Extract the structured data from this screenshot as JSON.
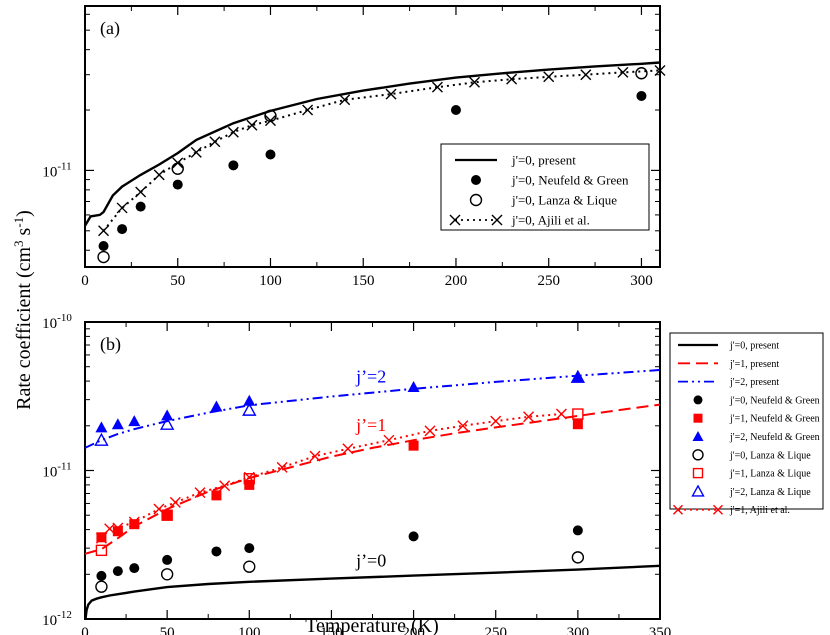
{
  "ylabel_left": "Rate coefficient (cm",
  "ylabel_sup": "3",
  "ylabel_mid": " s",
  "ylabel_sup2": "-1",
  "ylabel_end": ")",
  "chart_data": [
    {
      "type": "scatter",
      "panel_label": "(a)",
      "xlabel": "",
      "ylabel": "Rate coefficient (cm3 s-1)",
      "xlim": [
        0,
        310
      ],
      "ylim": [
        3.3e-12,
        6.6e-11
      ],
      "yscale": "log",
      "x_ticks": [
        0,
        50,
        100,
        150,
        200,
        250,
        300
      ],
      "y_ticks": [
        {
          "value": 1e-11,
          "base": "10",
          "exp": "-11"
        }
      ],
      "legend_position": "bottom-right",
      "series": [
        {
          "name": "j'=0, present",
          "style": "solid",
          "color": "#000000",
          "marker": "none",
          "x": [
            0,
            3,
            8,
            10,
            15,
            20,
            30,
            40,
            50,
            60,
            80,
            100,
            125,
            150,
            175,
            200,
            225,
            250,
            275,
            300,
            310
          ],
          "y": [
            5.3e-12,
            5.9e-12,
            6e-12,
            6.2e-12,
            7.5e-12,
            8.3e-12,
            9.5e-12,
            1.07e-11,
            1.22e-11,
            1.42e-11,
            1.72e-11,
            1.98e-11,
            2.27e-11,
            2.5e-11,
            2.71e-11,
            2.9e-11,
            3.05e-11,
            3.18e-11,
            3.3e-11,
            3.4e-11,
            3.45e-11
          ]
        },
        {
          "name": "j'=0, Neufeld & Green",
          "style": "none",
          "color": "#000000",
          "marker": "filled-circle",
          "x": [
            10,
            20,
            30,
            50,
            80,
            100,
            200,
            300
          ],
          "y": [
            4.2e-12,
            5.1e-12,
            6.6e-12,
            8.5e-12,
            1.06e-11,
            1.2e-11,
            2e-11,
            2.35e-11
          ]
        },
        {
          "name": "j'=0, Lanza & Lique",
          "style": "none",
          "color": "#000000",
          "marker": "open-circle",
          "x": [
            10,
            50,
            100,
            300
          ],
          "y": [
            3.7e-12,
            1.02e-11,
            1.87e-11,
            3.05e-11
          ]
        },
        {
          "name": "j'=0, Ajili et al.",
          "style": "dotted",
          "color": "#000000",
          "marker": "x",
          "x": [
            10,
            20,
            30,
            40,
            50,
            60,
            70,
            80,
            90,
            100,
            120,
            140,
            165,
            190,
            210,
            230,
            250,
            270,
            290,
            310
          ],
          "y": [
            5e-12,
            6.5e-12,
            7.8e-12,
            9.5e-12,
            1.09e-11,
            1.23e-11,
            1.39e-11,
            1.55e-11,
            1.68e-11,
            1.77e-11,
            2e-11,
            2.25e-11,
            2.4e-11,
            2.6e-11,
            2.75e-11,
            2.85e-11,
            2.93e-11,
            3e-11,
            3.08e-11,
            3.15e-11
          ]
        }
      ]
    },
    {
      "type": "scatter",
      "panel_label": "(b)",
      "xlabel": "Temperature (K)",
      "ylabel": "Rate coefficient (cm3 s-1)",
      "xlim": [
        0,
        350
      ],
      "ylim": [
        1e-12,
        1e-10
      ],
      "yscale": "log",
      "x_ticks": [
        0,
        50,
        100,
        150,
        200,
        250,
        300,
        350
      ],
      "y_ticks": [
        {
          "value": 1e-12,
          "base": "10",
          "exp": "-12"
        },
        {
          "value": 1e-11,
          "base": "10",
          "exp": "-11"
        },
        {
          "value": 1e-10,
          "base": "10",
          "exp": "-10"
        }
      ],
      "annotations": [
        {
          "text": "j’=2",
          "x": 165,
          "y": 3.9e-11,
          "color": "#0000ff"
        },
        {
          "text": "j’=1",
          "x": 165,
          "y": 1.85e-11,
          "color": "#ff0000"
        },
        {
          "text": "j’=0",
          "x": 165,
          "y": 2.25e-12,
          "color": "#000000"
        }
      ],
      "legend_position": "outside-right",
      "series": [
        {
          "name": "j'=0, present",
          "style": "solid",
          "color": "#000000",
          "marker": "none",
          "x": [
            0.3,
            1,
            2,
            4,
            7,
            10,
            15,
            20,
            30,
            50,
            75,
            100,
            150,
            200,
            250,
            300,
            350
          ],
          "y": [
            1e-12,
            1.15e-12,
            1.25e-12,
            1.33e-12,
            1.37e-12,
            1.4e-12,
            1.44e-12,
            1.47e-12,
            1.53e-12,
            1.64e-12,
            1.72e-12,
            1.78e-12,
            1.87e-12,
            1.96e-12,
            2.05e-12,
            2.15e-12,
            2.28e-12
          ]
        },
        {
          "name": "j'=1, present",
          "style": "dashed",
          "color": "#ff0000",
          "marker": "none",
          "x": [
            0,
            5,
            10,
            20,
            30,
            50,
            75,
            100,
            125,
            150,
            175,
            200,
            225,
            250,
            275,
            300,
            325,
            350
          ],
          "y": [
            2.75e-12,
            2.85e-12,
            2.95e-12,
            3.5e-12,
            4.2e-12,
            5.5e-12,
            7.2e-12,
            8.9e-12,
            1.05e-11,
            1.24e-11,
            1.42e-11,
            1.6e-11,
            1.78e-11,
            1.95e-11,
            2.13e-11,
            2.33e-11,
            2.55e-11,
            2.78e-11
          ]
        },
        {
          "name": "j'=2, present",
          "style": "dashdot",
          "color": "#0000ff",
          "marker": "none",
          "x": [
            0,
            10,
            20,
            30,
            50,
            75,
            100,
            150,
            200,
            250,
            300,
            350
          ],
          "y": [
            1.42e-11,
            1.6e-11,
            1.76e-11,
            1.9e-11,
            2.15e-11,
            2.45e-11,
            2.75e-11,
            3.15e-11,
            3.55e-11,
            3.95e-11,
            4.35e-11,
            4.75e-11
          ]
        },
        {
          "name": "j'=0, Neufeld & Green",
          "style": "none",
          "color": "#000000",
          "marker": "filled-circle",
          "x": [
            10,
            20,
            30,
            50,
            80,
            100,
            200,
            300
          ],
          "y": [
            1.95e-12,
            2.1e-12,
            2.2e-12,
            2.5e-12,
            2.85e-12,
            3e-12,
            3.6e-12,
            3.95e-12
          ]
        },
        {
          "name": "j'=1, Neufeld & Green",
          "style": "none",
          "color": "#ff0000",
          "marker": "filled-square",
          "x": [
            10,
            20,
            30,
            50,
            80,
            100,
            200,
            300
          ],
          "y": [
            3.55e-12,
            3.9e-12,
            4.35e-12,
            5.05e-12,
            6.8e-12,
            8e-12,
            1.47e-11,
            2.05e-11
          ]
        },
        {
          "name": "j'=2, Neufeld & Green",
          "style": "none",
          "color": "#0000ff",
          "marker": "filled-triangle",
          "x": [
            10,
            20,
            30,
            50,
            80,
            100,
            200,
            300
          ],
          "y": [
            1.95e-11,
            2.05e-11,
            2.15e-11,
            2.35e-11,
            2.7e-11,
            2.95e-11,
            3.65e-11,
            4.25e-11
          ]
        },
        {
          "name": "j'=0, Lanza & Lique",
          "style": "none",
          "color": "#000000",
          "marker": "open-circle",
          "x": [
            10,
            50,
            100,
            300
          ],
          "y": [
            1.65e-12,
            2e-12,
            2.25e-12,
            2.6e-12
          ]
        },
        {
          "name": "j'=1, Lanza & Lique",
          "style": "none",
          "color": "#ff0000",
          "marker": "open-square",
          "x": [
            10,
            50,
            100,
            300
          ],
          "y": [
            2.9e-12,
            5e-12,
            8.8e-12,
            2.4e-11
          ]
        },
        {
          "name": "j'=2, Lanza & Lique",
          "style": "none",
          "color": "#0000ff",
          "marker": "open-triangle",
          "x": [
            10,
            50,
            100,
            300
          ],
          "y": [
            1.6e-11,
            2.05e-11,
            2.55e-11,
            4.25e-11
          ]
        },
        {
          "name": "j'=1, Ajili et al.",
          "style": "dotted",
          "color": "#ff0000",
          "marker": "x",
          "x": [
            10,
            15,
            20,
            30,
            45,
            55,
            70,
            85,
            100,
            120,
            140,
            160,
            185,
            210,
            230,
            250,
            270,
            290
          ],
          "y": [
            3.5e-12,
            4.05e-12,
            4.1e-12,
            4.5e-12,
            5.5e-12,
            6.1e-12,
            7.1e-12,
            7.9e-12,
            9e-12,
            1.05e-11,
            1.25e-11,
            1.4e-11,
            1.6e-11,
            1.85e-11,
            2e-11,
            2.15e-11,
            2.3e-11,
            2.4e-11
          ]
        }
      ]
    }
  ]
}
